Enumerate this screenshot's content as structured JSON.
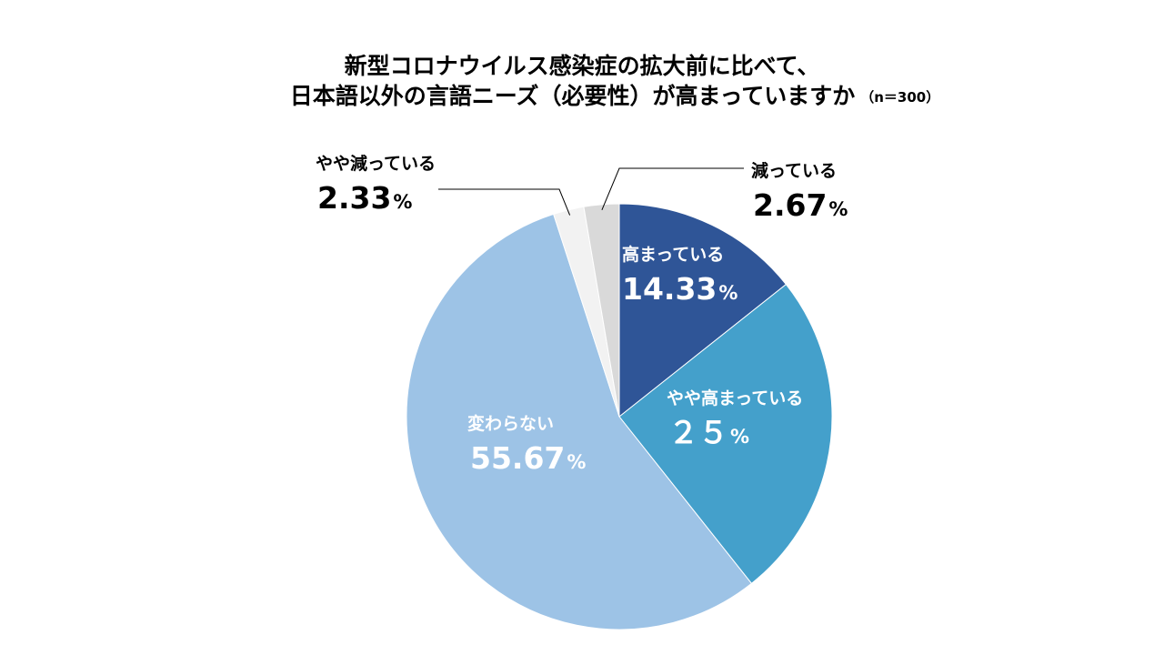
{
  "chart_data": {
    "type": "pie",
    "title_line1": "新型コロナウイルス感染症の拡大前に比べて、",
    "title_line2": "日本語以外の言語ニーズ（必要性）が高まっていますか",
    "sample_size": "（n＝300）",
    "start_angle_deg": 0,
    "direction": "clockwise",
    "slices": [
      {
        "label": "高まっている",
        "value": 14.33,
        "display": "14.33",
        "color": "#2F5597"
      },
      {
        "label": "やや高まっている",
        "value": 25,
        "display": "２５",
        "color": "#44A0CB"
      },
      {
        "label": "変わらない",
        "value": 55.67,
        "display": "55.67",
        "color": "#9DC3E6"
      },
      {
        "label": "やや減っている",
        "value": 2.33,
        "display": "2.33",
        "color": "#F2F2F2"
      },
      {
        "label": "減っている",
        "value": 2.67,
        "display": "2.67",
        "color": "#D9D9D9"
      }
    ],
    "unit": "%"
  }
}
